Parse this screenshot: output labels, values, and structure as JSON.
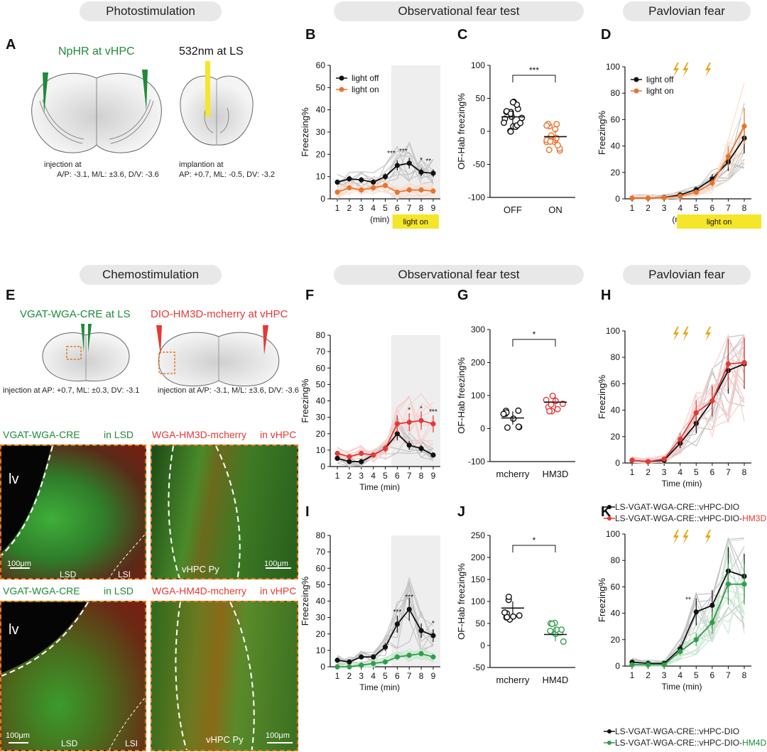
{
  "headers": {
    "photostim": "Photostimulation",
    "of_test": "Observational fear test",
    "pavlovian": "Pavlovian fear",
    "chemostim": "Chemostimulation",
    "of_test2": "Observational fear test",
    "pavlovian2": "Pavlovian fear"
  },
  "panel_letters": [
    "A",
    "B",
    "C",
    "D",
    "E",
    "F",
    "G",
    "H",
    "I",
    "J",
    "K"
  ],
  "panelA": {
    "title1": "NpHR at vHPC",
    "title2": "532nm at LS",
    "inj_title": "injection at",
    "inj_coords": "A/P: -3.1, M/L: ±3.6, D/V: -3.6",
    "impl_title": "implantion  at",
    "impl_coords": "AP: +0.7, ML: -0.5, DV: -3.2"
  },
  "panelE": {
    "title1": "VGAT-WGA-CRE at LS",
    "title2": "DIO-HM3D-mcherry at vHPC",
    "inj1": "injection at AP: +0.7, ML: ±0.3, DV: -3.1",
    "inj2": "injection at A/P: -3.1, M/L: ±3.6, D/V: -3.6",
    "micro": [
      {
        "left_label": "VGAT-WGA-CRE",
        "right_label": "in LSD",
        "tags": [
          "lv",
          "LSD",
          "LSI"
        ],
        "scale": "100μm"
      },
      {
        "left_label": "WGA-HM3D-mcherry",
        "right_label": "in vHPC",
        "tags": [
          "vHPC Py"
        ],
        "scale": "100μm"
      },
      {
        "left_label": "VGAT-WGA-CRE",
        "right_label": "in LSD",
        "tags": [
          "lv",
          "LSD",
          "LSI"
        ],
        "scale": "100μm"
      },
      {
        "left_label": "WGA-HM4D-mcherry",
        "right_label": "in vHPC",
        "tags": [
          "vHPC Py"
        ],
        "scale": "100μm"
      }
    ]
  },
  "colors": {
    "black": "#111111",
    "orange": "#e8742e",
    "red": "#e53935",
    "green": "#2e9e4a",
    "shade": "#eeeeee",
    "yellow": "#f5e62a",
    "bolt": "#e6a817"
  },
  "chart_data": [
    {
      "id": "B",
      "type": "line",
      "ylabel": "Freezeing%",
      "xlabel": "(min)",
      "x": [
        1,
        2,
        3,
        4,
        5,
        6,
        7,
        8,
        9
      ],
      "ylim": [
        0,
        60
      ],
      "yticks": [
        0,
        10,
        20,
        30,
        40,
        50,
        60
      ],
      "shaded_from": 5.5,
      "band_label": "light on",
      "legend": [
        "light off",
        "light on"
      ],
      "series": [
        {
          "name": "light off",
          "values": [
            7.5,
            9,
            8.5,
            7.5,
            10,
            15,
            16,
            12,
            11.5
          ],
          "color": "#111111"
        },
        {
          "name": "light on",
          "values": [
            3,
            5,
            4,
            5,
            6,
            3,
            4,
            4,
            3.5
          ],
          "color": "#e8742e"
        }
      ],
      "annotations": [
        {
          "x": 5.5,
          "text": "***"
        },
        {
          "x": 6.5,
          "text": "***"
        },
        {
          "x": 8,
          "text": "*"
        },
        {
          "x": 8.6,
          "text": "**"
        }
      ]
    },
    {
      "id": "C",
      "type": "scatter",
      "ylabel": "OF-Hab freezing%",
      "ylim": [
        -100,
        100
      ],
      "yticks": [
        -100,
        -50,
        0,
        50,
        100
      ],
      "categories": [
        "OFF",
        "ON"
      ],
      "means": [
        22,
        -8
      ],
      "significance": "***",
      "colors": [
        "#111111",
        "#e8742e"
      ]
    },
    {
      "id": "D",
      "type": "line",
      "ylabel": "Freezing%",
      "xlabel": "(min)",
      "x": [
        1,
        2,
        3,
        4,
        5,
        6,
        7,
        8
      ],
      "ylim": [
        0,
        100
      ],
      "yticks": [
        0,
        20,
        40,
        60,
        80,
        100
      ],
      "band_label": "light on",
      "legend": [
        "light off",
        "light on"
      ],
      "series": [
        {
          "name": "light off",
          "values": [
            0.5,
            0.5,
            1,
            3,
            7,
            15,
            28,
            46
          ],
          "color": "#111111"
        },
        {
          "name": "light on",
          "values": [
            0.5,
            0.5,
            0.8,
            2,
            5,
            12,
            32,
            55
          ],
          "color": "#e8742e"
        }
      ]
    },
    {
      "id": "F",
      "type": "line",
      "ylabel": "Freezing%",
      "xlabel": "Time   (min)",
      "x": [
        1,
        2,
        3,
        4,
        5,
        6,
        7,
        8,
        9
      ],
      "ylim": [
        0,
        80
      ],
      "yticks": [
        0,
        10,
        20,
        30,
        40,
        50,
        60,
        70,
        80
      ],
      "shaded_from": 5.5,
      "series": [
        {
          "name": "mcherry",
          "values": [
            5,
            3,
            3,
            7,
            11,
            20,
            13,
            11,
            7
          ],
          "color": "#111111"
        },
        {
          "name": "HM3D",
          "values": [
            8,
            6,
            8,
            7,
            11,
            26,
            27,
            28,
            26
          ],
          "color": "#e53935"
        }
      ],
      "annotations": [
        {
          "x": 7,
          "text": "*"
        },
        {
          "x": 8,
          "text": "*"
        },
        {
          "x": 9,
          "text": "***"
        }
      ]
    },
    {
      "id": "G",
      "type": "scatter",
      "ylabel": "OF-Hab freezing%",
      "ylim": [
        -100,
        300
      ],
      "yticks": [
        -100,
        0,
        100,
        200,
        300
      ],
      "categories": [
        "mcherry",
        "HM3D"
      ],
      "means": [
        32,
        80
      ],
      "significance": "*",
      "colors": [
        "#111111",
        "#e53935"
      ]
    },
    {
      "id": "H",
      "type": "line",
      "ylabel": "Freezing%",
      "xlabel": "Time  (min)",
      "x": [
        1,
        2,
        3,
        4,
        5,
        6,
        7,
        8
      ],
      "ylim": [
        0,
        100
      ],
      "yticks": [
        0,
        20,
        40,
        60,
        80,
        100
      ],
      "series": [
        {
          "name": "LS-VGAT-WGA-CRE::vHPC-DIO",
          "values": [
            2,
            1,
            2,
            15,
            30,
            47,
            70,
            75
          ],
          "color": "#111111"
        },
        {
          "name": "LS-VGAT-WGA-CRE::vHPC-DIO-HM3D",
          "values": [
            2,
            1,
            3,
            18,
            38,
            47,
            75,
            76
          ],
          "color": "#e53935"
        }
      ]
    },
    {
      "id": "I",
      "type": "line",
      "ylabel": "Freezeing%",
      "xlabel": "Time   (min)",
      "x": [
        1,
        2,
        3,
        4,
        5,
        6,
        7,
        8,
        9
      ],
      "ylim": [
        0,
        80
      ],
      "yticks": [
        0,
        10,
        20,
        30,
        40,
        50,
        60,
        70,
        80
      ],
      "shaded_from": 5.5,
      "series": [
        {
          "name": "mcherry",
          "values": [
            4,
            3,
            6,
            6,
            12,
            26,
            35,
            22,
            19
          ],
          "color": "#111111"
        },
        {
          "name": "HM4D",
          "values": [
            0,
            0,
            1,
            2,
            3,
            6,
            7,
            8,
            6
          ],
          "color": "#2e9e4a"
        }
      ],
      "annotations": [
        {
          "x": 6,
          "text": "***"
        },
        {
          "x": 7,
          "text": "***"
        },
        {
          "x": 9,
          "text": "*"
        }
      ]
    },
    {
      "id": "J",
      "type": "scatter",
      "ylabel": "OF-Hab freezing%",
      "ylim": [
        -50,
        250
      ],
      "yticks": [
        -50,
        0,
        50,
        100,
        150,
        200,
        250
      ],
      "categories": [
        "mcherry",
        "HM4D"
      ],
      "means": [
        85,
        25
      ],
      "significance": "*",
      "colors": [
        "#111111",
        "#2e9e4a"
      ]
    },
    {
      "id": "K",
      "type": "line",
      "ylabel": "Freezing%",
      "xlabel": "Time  (min)",
      "x": [
        1,
        2,
        3,
        4,
        5,
        6,
        7,
        8
      ],
      "ylim": [
        0,
        100
      ],
      "yticks": [
        0,
        20,
        40,
        60,
        80,
        100
      ],
      "series": [
        {
          "name": "LS-VGAT-WGA-CRE::vHPC-DIO",
          "values": [
            3,
            2,
            2,
            13,
            41,
            46,
            72,
            68
          ],
          "color": "#111111"
        },
        {
          "name": "LS-VGAT-WGA-CRE::vHPC-DIO-HM4D",
          "values": [
            1,
            1,
            1,
            11,
            20,
            33,
            62,
            62
          ],
          "color": "#2e9e4a"
        }
      ],
      "annotations": [
        {
          "x": 4.5,
          "text": "**"
        }
      ]
    }
  ],
  "legend_H": [
    "LS-VGAT-WGA-CRE::vHPC-DIO",
    "LS-VGAT-WGA-CRE::vHPC-DIO-",
    "HM3D"
  ],
  "legend_K": [
    "LS-VGAT-WGA-CRE::vHPC-DIO",
    "LS-VGAT-WGA-CRE::vHPC-DIO-",
    "HM4D"
  ]
}
